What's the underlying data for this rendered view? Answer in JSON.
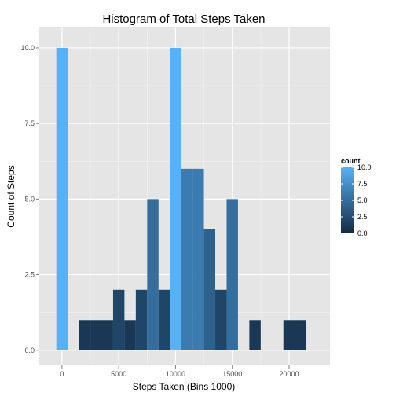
{
  "chart_data": {
    "type": "bar",
    "title": "Histogram of Total Steps Taken",
    "xlabel": "Steps Taken (Bins 1000)",
    "ylabel": "Count of Steps",
    "binwidth": 1000,
    "xlim": [
      -2000,
      23600
    ],
    "ylim": [
      -0.5,
      10.7
    ],
    "x_ticks": [
      0,
      5000,
      10000,
      15000,
      20000
    ],
    "y_ticks": [
      0.0,
      2.5,
      5.0,
      7.5,
      10.0
    ],
    "y_tick_labels": [
      "0.0",
      "2.5",
      "5.0",
      "7.5",
      "10.0"
    ],
    "grid": true,
    "bins": [
      {
        "x": 0,
        "count": 10
      },
      {
        "x": 1000,
        "count": 0
      },
      {
        "x": 2000,
        "count": 1
      },
      {
        "x": 3000,
        "count": 1
      },
      {
        "x": 4000,
        "count": 1
      },
      {
        "x": 5000,
        "count": 2
      },
      {
        "x": 6000,
        "count": 1
      },
      {
        "x": 7000,
        "count": 2
      },
      {
        "x": 8000,
        "count": 5
      },
      {
        "x": 9000,
        "count": 2
      },
      {
        "x": 10000,
        "count": 10
      },
      {
        "x": 11000,
        "count": 6
      },
      {
        "x": 12000,
        "count": 6
      },
      {
        "x": 13000,
        "count": 4
      },
      {
        "x": 14000,
        "count": 2
      },
      {
        "x": 15000,
        "count": 5
      },
      {
        "x": 16000,
        "count": 0
      },
      {
        "x": 17000,
        "count": 1
      },
      {
        "x": 18000,
        "count": 0
      },
      {
        "x": 19000,
        "count": 0
      },
      {
        "x": 20000,
        "count": 1
      },
      {
        "x": 21000,
        "count": 1
      }
    ],
    "legend": {
      "title": "count",
      "position": "right",
      "range": [
        0,
        10
      ],
      "ticks": [
        0.0,
        2.5,
        5.0,
        7.5,
        10.0
      ],
      "tick_labels": [
        "0.0",
        "2.5",
        "5.0",
        "7.5",
        "10.0"
      ],
      "color_low": "#132B43",
      "color_high": "#56B1F7"
    }
  }
}
